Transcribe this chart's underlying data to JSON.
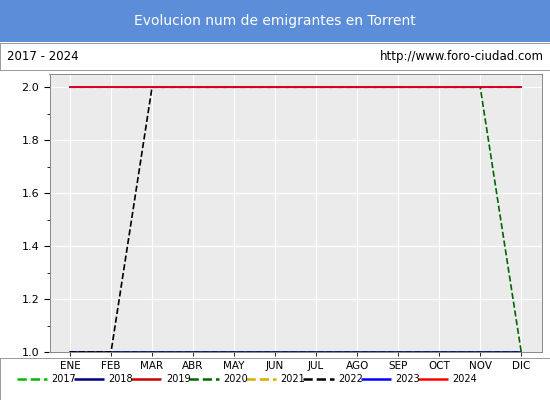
{
  "title": "Evolucion num de emigrantes en Torrent",
  "title_bg_color": "#5b8dd9",
  "title_text_color": "#ffffff",
  "subtitle_left": "2017 - 2024",
  "subtitle_right": "http://www.foro-ciudad.com",
  "months": [
    "ENE",
    "FEB",
    "MAR",
    "ABR",
    "MAY",
    "JUN",
    "JUL",
    "AGO",
    "SEP",
    "OCT",
    "NOV",
    "DIC"
  ],
  "ylim": [
    1.0,
    2.05
  ],
  "yticks": [
    1.0,
    1.2,
    1.4,
    1.6,
    1.8,
    2.0
  ],
  "plot_bg_color": "#ebebeb",
  "grid_color": "#ffffff",
  "series": [
    {
      "year": 2017,
      "color": "#00bb00",
      "linewidth": 1.2,
      "linestyle": "--",
      "values": [
        1.0,
        1.0,
        1.0,
        1.0,
        1.0,
        1.0,
        1.0,
        1.0,
        1.0,
        1.0,
        1.0,
        1.0
      ]
    },
    {
      "year": 2018,
      "color": "#000080",
      "linewidth": 1.2,
      "linestyle": "-",
      "values": [
        1.0,
        1.0,
        1.0,
        1.0,
        1.0,
        1.0,
        1.0,
        1.0,
        1.0,
        1.0,
        1.0,
        1.0
      ]
    },
    {
      "year": 2019,
      "color": "#cc0000",
      "linewidth": 1.2,
      "linestyle": "-",
      "values": [
        2.0,
        2.0,
        2.0,
        2.0,
        2.0,
        2.0,
        2.0,
        2.0,
        2.0,
        2.0,
        2.0,
        2.0
      ]
    },
    {
      "year": 2020,
      "color": "#006600",
      "linewidth": 1.2,
      "linestyle": "--",
      "values": [
        2.0,
        2.0,
        2.0,
        2.0,
        2.0,
        2.0,
        2.0,
        2.0,
        2.0,
        2.0,
        2.0,
        1.0
      ]
    },
    {
      "year": 2021,
      "color": "#ddaa00",
      "linewidth": 1.2,
      "linestyle": "--",
      "values": [
        2.0,
        2.0,
        2.0,
        2.0,
        2.0,
        2.0,
        2.0,
        2.0,
        2.0,
        2.0,
        2.0,
        2.0
      ]
    },
    {
      "year": 2022,
      "color": "#000000",
      "linewidth": 1.2,
      "linestyle": "--",
      "values": [
        1.0,
        1.0,
        2.0,
        2.0,
        2.0,
        2.0,
        2.0,
        2.0,
        2.0,
        2.0,
        2.0,
        2.0
      ]
    },
    {
      "year": 2023,
      "color": "#0000ff",
      "linewidth": 1.2,
      "linestyle": "-",
      "values": [
        2.0,
        2.0,
        2.0,
        2.0,
        2.0,
        2.0,
        2.0,
        2.0,
        2.0,
        2.0,
        2.0,
        2.0
      ]
    },
    {
      "year": 2024,
      "color": "#ff0000",
      "linewidth": 1.2,
      "linestyle": "-",
      "values": [
        2.0,
        2.0,
        2.0,
        2.0,
        2.0,
        2.0,
        2.0,
        2.0,
        2.0,
        2.0,
        2.0,
        2.0
      ]
    }
  ],
  "fig_width": 5.5,
  "fig_height": 4.0,
  "dpi": 100
}
